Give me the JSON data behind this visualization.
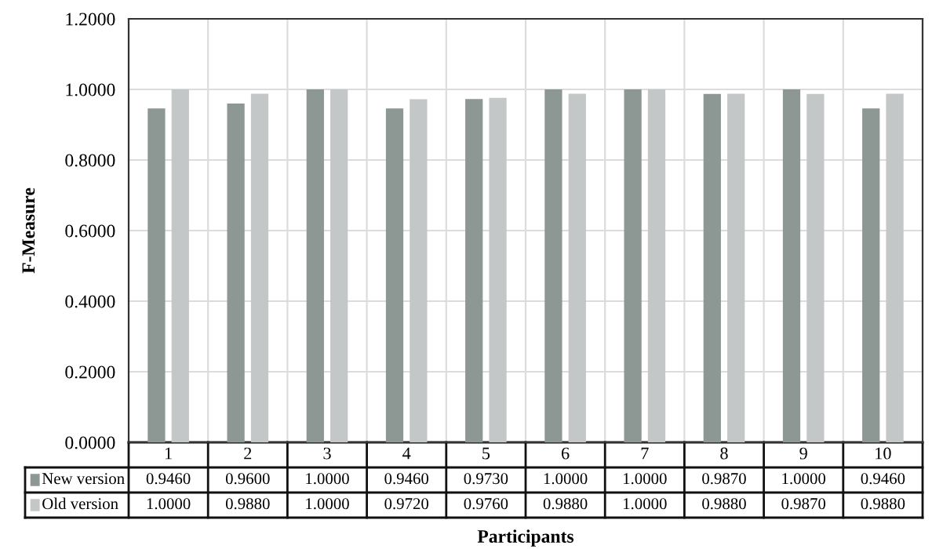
{
  "chart_data": {
    "type": "bar",
    "xlabel": "Participants",
    "ylabel": "F-Measure",
    "categories": [
      "1",
      "2",
      "3",
      "4",
      "5",
      "6",
      "7",
      "8",
      "9",
      "10"
    ],
    "series": [
      {
        "name": "New version",
        "color": "#8d9894",
        "values": [
          0.946,
          0.96,
          1.0,
          0.946,
          0.973,
          1.0,
          1.0,
          0.987,
          1.0,
          0.946
        ],
        "value_labels": [
          "0.9460",
          "0.9600",
          "1.0000",
          "0.9460",
          "0.9730",
          "1.0000",
          "1.0000",
          "0.9870",
          "1.0000",
          "0.9460"
        ]
      },
      {
        "name": "Old version",
        "color": "#c3c7c7",
        "values": [
          1.0,
          0.988,
          1.0,
          0.972,
          0.976,
          0.988,
          1.0,
          0.988,
          0.987,
          0.988
        ],
        "value_labels": [
          "1.0000",
          "0.9880",
          "1.0000",
          "0.9720",
          "0.9760",
          "0.9880",
          "1.0000",
          "0.9880",
          "0.9870",
          "0.9880"
        ]
      }
    ],
    "ylim": [
      0,
      1.2
    ],
    "yticks": [
      {
        "value": 0,
        "label": "0.0000"
      },
      {
        "value": 0.2,
        "label": "0.2000"
      },
      {
        "value": 0.4,
        "label": "0.4000"
      },
      {
        "value": 0.6,
        "label": "0.6000"
      },
      {
        "value": 0.8,
        "label": "0.8000"
      },
      {
        "value": 1.0,
        "label": "1.0000"
      },
      {
        "value": 1.2,
        "label": "1.2000"
      }
    ],
    "grid": true,
    "legend": "bottom"
  }
}
